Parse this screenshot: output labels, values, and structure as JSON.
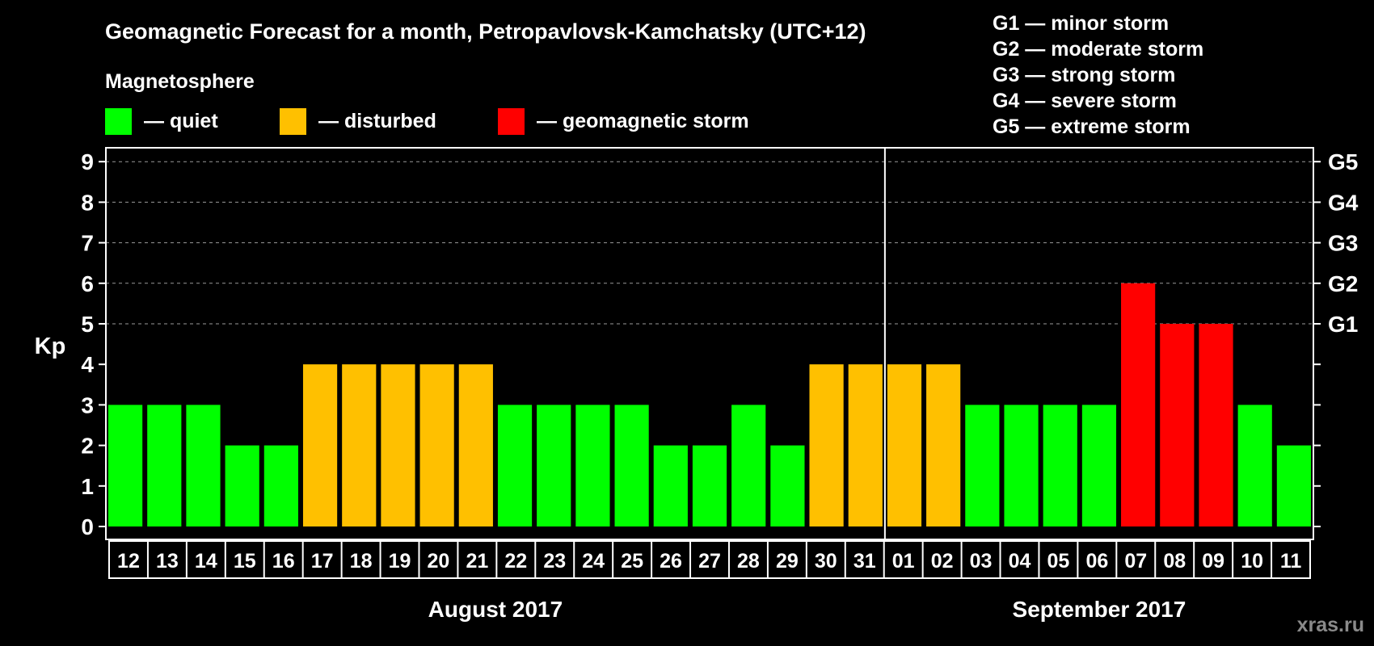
{
  "chart_data": {
    "type": "bar",
    "title": "Geomagnetic Forecast for a month, Petropavlovsk-Kamchatsky (UTC+12)",
    "legend_title": "Magnetosphere",
    "legend": [
      {
        "label": "— quiet",
        "color": "#00ff00"
      },
      {
        "label": "— disturbed",
        "color": "#ffc000"
      },
      {
        "label": "— geomagnetic storm",
        "color": "#ff0000"
      }
    ],
    "storm_scale": [
      "G1 — minor storm",
      "G2 — moderate storm",
      "G3 — strong storm",
      "G4 — severe storm",
      "G5 — extreme storm"
    ],
    "ylabel": "Kp",
    "ylim": [
      0,
      9
    ],
    "y_ticks": [
      "0",
      "1",
      "2",
      "3",
      "4",
      "5",
      "6",
      "7",
      "8",
      "9"
    ],
    "right_ticks": [
      {
        "value": 5,
        "label": "G1"
      },
      {
        "value": 6,
        "label": "G2"
      },
      {
        "value": 7,
        "label": "G3"
      },
      {
        "value": 8,
        "label": "G4"
      },
      {
        "value": 9,
        "label": "G5"
      }
    ],
    "categories": [
      "12",
      "13",
      "14",
      "15",
      "16",
      "17",
      "18",
      "19",
      "20",
      "21",
      "22",
      "23",
      "24",
      "25",
      "26",
      "27",
      "28",
      "29",
      "30",
      "31",
      "01",
      "02",
      "03",
      "04",
      "05",
      "06",
      "07",
      "08",
      "09",
      "10",
      "11"
    ],
    "values": [
      3,
      3,
      3,
      2,
      2,
      4,
      4,
      4,
      4,
      4,
      3,
      3,
      3,
      3,
      2,
      2,
      3,
      2,
      4,
      4,
      4,
      4,
      3,
      3,
      3,
      3,
      6,
      5,
      5,
      3,
      2
    ],
    "months": [
      {
        "label": "August 2017",
        "start": 0,
        "end": 19
      },
      {
        "label": "September 2017",
        "start": 20,
        "end": 30
      }
    ],
    "month_divider_after_index": 19,
    "level_colors": {
      "quiet": "#00ff00",
      "disturbed": "#ffc000",
      "storm": "#ff0000"
    },
    "grid": "dashed, at Kp 5–9"
  },
  "watermark": "xras.ru"
}
